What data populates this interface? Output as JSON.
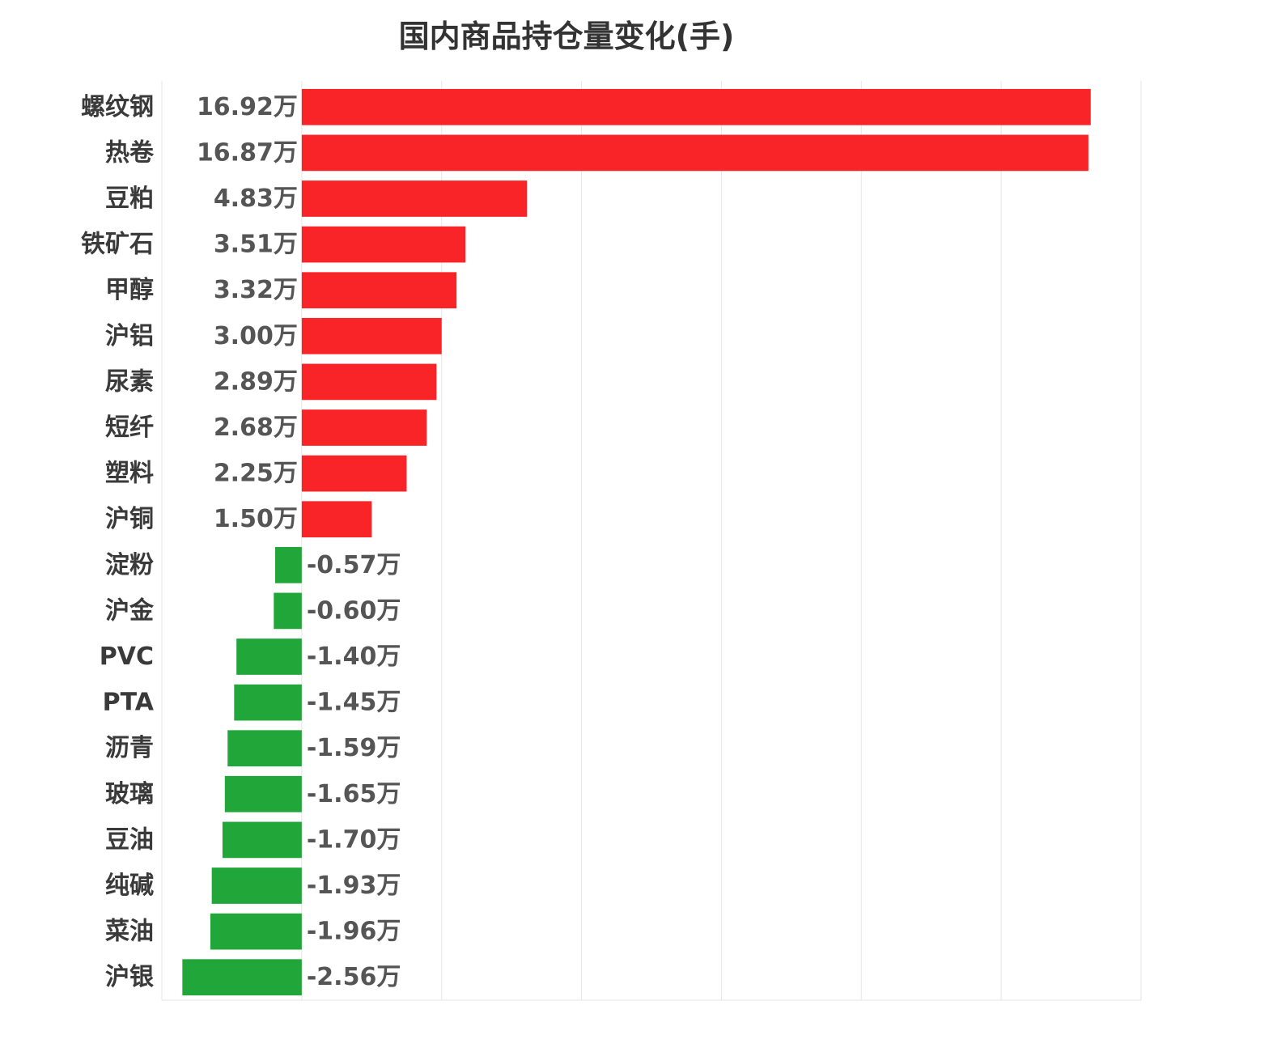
{
  "chart_data": {
    "type": "bar",
    "orientation": "horizontal",
    "title": "国内商品持仓量变化(手)",
    "unit_suffix": "万",
    "categories": [
      "螺纹钢",
      "热卷",
      "豆粕",
      "铁矿石",
      "甲醇",
      "沪铝",
      "尿素",
      "短纤",
      "塑料",
      "沪铜",
      "淀粉",
      "沪金",
      "PVC",
      "PTA",
      "沥青",
      "玻璃",
      "豆油",
      "纯碱",
      "菜油",
      "沪银"
    ],
    "values": [
      16.92,
      16.87,
      4.83,
      3.51,
      3.32,
      3.0,
      2.89,
      2.68,
      2.25,
      1.5,
      -0.57,
      -0.6,
      -1.4,
      -1.45,
      -1.59,
      -1.65,
      -1.7,
      -1.93,
      -1.96,
      -2.56
    ],
    "value_labels": [
      "16.92万",
      "16.87万",
      "4.83万",
      "3.51万",
      "3.32万",
      "3.00万",
      "2.89万",
      "2.68万",
      "2.25万",
      "1.50万",
      "-0.57万",
      "-0.60万",
      "-1.40万",
      "-1.45万",
      "-1.59万",
      "-1.65万",
      "-1.70万",
      "-1.93万",
      "-1.96万",
      "-2.56万"
    ],
    "xlim": [
      -3,
      18
    ],
    "grid": true,
    "colors": {
      "positive": "#f92427",
      "negative": "#21a63a",
      "grid": "#e6e6e6"
    }
  }
}
